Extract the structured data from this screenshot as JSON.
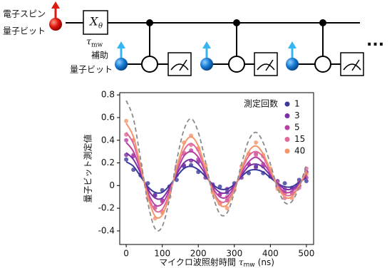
{
  "diagram": {
    "electron_label": [
      "電子スピン",
      "量子ビット"
    ],
    "ancilla_label": [
      "補助",
      "量子ビット"
    ],
    "gate": "X",
    "gate_sub": "θ",
    "time": "τ",
    "time_sub": "mw",
    "ellipsis": "..."
  },
  "chart_data": {
    "type": "scatter",
    "xlabel": "マイクロ波照射時間",
    "xlabel_symbol": "τ",
    "xlabel_sub": "mw",
    "xlabel_unit": "(ns)",
    "ylabel": "量子ビット測定値",
    "legend_title": "測定回数",
    "legend": "upper right",
    "xlim": [
      -18,
      520
    ],
    "ylim": [
      -0.52,
      0.82
    ],
    "xticks": [
      0,
      100,
      200,
      300,
      400,
      500
    ],
    "yticks": [
      -0.4,
      -0.2,
      0.0,
      0.2,
      0.4,
      0.6,
      0.8
    ],
    "x": [
      0,
      20,
      40,
      60,
      80,
      100,
      120,
      140,
      160,
      180,
      200,
      220,
      240,
      260,
      280,
      300,
      320,
      340,
      360,
      380,
      400,
      420,
      440,
      460,
      480,
      500
    ],
    "reference": {
      "color": "#8a8a8a",
      "dashed": true,
      "values": [
        0.75,
        0.59,
        0.23,
        -0.15,
        -0.38,
        -0.36,
        -0.12,
        0.22,
        0.49,
        0.59,
        0.47,
        0.21,
        -0.08,
        -0.25,
        -0.24,
        -0.06,
        0.19,
        0.4,
        0.47,
        0.38,
        0.19,
        -0.02,
        -0.15,
        -0.14,
        -0.01,
        0.18
      ]
    },
    "series": [
      {
        "name": "1",
        "color": "#3b3a9c",
        "values": [
          0.23,
          0.14,
          0.09,
          0.02,
          -0.08,
          -0.04,
          -0.01,
          0.05,
          0.17,
          0.18,
          0.12,
          0.11,
          0,
          -0.01,
          -0.06,
          0.02,
          0.1,
          0.11,
          0.17,
          0.11,
          0.08,
          0,
          0.02,
          -0.02,
          0.05,
          0.04
        ],
        "fit": [
          0.21,
          0.17,
          0.08,
          -0.01,
          -0.06,
          -0.06,
          0,
          0.08,
          0.15,
          0.17,
          0.14,
          0.08,
          0.01,
          -0.03,
          -0.03,
          0.01,
          0.08,
          0.13,
          0.14,
          0.12,
          0.07,
          0.02,
          -0.01,
          -0.01,
          0.03,
          0.07
        ]
      },
      {
        "name": "3",
        "color": "#7b2fa3",
        "values": [
          0.27,
          0.26,
          0.1,
          -0.06,
          -0.09,
          -0.13,
          -0.01,
          0.13,
          0.18,
          0.22,
          0.21,
          0.07,
          0.01,
          -0.08,
          -0.03,
          -0.01,
          0.07,
          0.19,
          0.16,
          0.17,
          0.08,
          0.04,
          -0.06,
          -0.02,
          0,
          0.12
        ],
        "fit": [
          0.29,
          0.23,
          0.11,
          -0.03,
          -0.11,
          -0.11,
          -0.02,
          0.1,
          0.2,
          0.23,
          0.19,
          0.1,
          0,
          -0.06,
          -0.06,
          0,
          0.09,
          0.17,
          0.19,
          0.16,
          0.09,
          0.02,
          -0.03,
          -0.03,
          0.02,
          0.09
        ]
      },
      {
        "name": "5",
        "color": "#b63fa6",
        "values": [
          0.4,
          0.27,
          0.14,
          -0.03,
          -0.19,
          -0.14,
          -0.05,
          0.09,
          0.28,
          0.31,
          0.23,
          0.15,
          -0.03,
          -0.08,
          -0.13,
          0,
          0.13,
          0.19,
          0.28,
          0.19,
          0.12,
          -0.01,
          -0.03,
          -0.06,
          0.03,
          0.07
        ],
        "fit": [
          0.38,
          0.3,
          0.13,
          -0.06,
          -0.17,
          -0.16,
          -0.04,
          0.12,
          0.26,
          0.3,
          0.25,
          0.12,
          -0.02,
          -0.1,
          -0.1,
          -0.01,
          0.11,
          0.21,
          0.25,
          0.2,
          0.11,
          0.01,
          -0.06,
          -0.05,
          0.01,
          0.1
        ]
      },
      {
        "name": "15",
        "color": "#e0689a",
        "values": [
          0.45,
          0.4,
          0.14,
          -0.11,
          -0.2,
          -0.23,
          -0.06,
          0.17,
          0.29,
          0.36,
          0.32,
          0.11,
          -0.03,
          -0.16,
          -0.1,
          -0.04,
          0.11,
          0.28,
          0.27,
          0.26,
          0.11,
          0.02,
          -0.11,
          -0.07,
          -0.02,
          0.15
        ],
        "fit": [
          0.47,
          0.37,
          0.15,
          -0.08,
          -0.22,
          -0.21,
          -0.07,
          0.14,
          0.31,
          0.37,
          0.3,
          0.14,
          -0.04,
          -0.14,
          -0.13,
          -0.03,
          0.13,
          0.26,
          0.3,
          0.25,
          0.12,
          0,
          -0.08,
          -0.08,
          0,
          0.12
        ]
      },
      {
        "name": "40",
        "color": "#f5956b",
        "values": [
          0.57,
          0.4,
          0.18,
          -0.07,
          -0.29,
          -0.24,
          -0.1,
          0.13,
          0.38,
          0.44,
          0.33,
          0.18,
          -0.06,
          -0.15,
          -0.2,
          -0.03,
          0.17,
          0.28,
          0.38,
          0.27,
          0.15,
          -0.03,
          -0.07,
          -0.11,
          0.02,
          0.1
        ],
        "fit": [
          0.55,
          0.43,
          0.17,
          -0.1,
          -0.27,
          -0.26,
          -0.09,
          0.16,
          0.36,
          0.43,
          0.35,
          0.15,
          -0.05,
          -0.17,
          -0.17,
          -0.04,
          0.15,
          0.3,
          0.35,
          0.28,
          0.14,
          -0.01,
          -0.1,
          -0.1,
          0,
          0.13
        ]
      }
    ]
  }
}
